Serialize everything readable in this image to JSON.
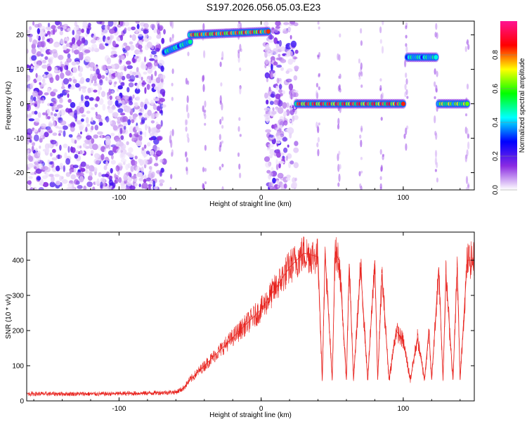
{
  "title": "S197.2026.056.05.03.E23",
  "chart_data": [
    {
      "type": "heatmap",
      "title": "S197.2026.056.05.03.E23",
      "xlabel": "Height of straight line (km)",
      "ylabel": "Frequency (Hz)",
      "xlim": [
        -165,
        150
      ],
      "ylim": [
        -25,
        24
      ],
      "xticks": [
        -100,
        0,
        100
      ],
      "yticks": [
        -20,
        -10,
        0,
        10,
        20
      ],
      "colorbar": {
        "label": "Normalized spectral amplitude",
        "range": [
          0,
          1
        ],
        "ticks": [
          "0.0",
          "0.2",
          "0.4",
          "0.6",
          "0.8"
        ],
        "colormap": [
          "#ffffff",
          "#8a2be2",
          "#0000ff",
          "#00ffff",
          "#00ff00",
          "#ffff00",
          "#ff0000",
          "#ff1493"
        ]
      },
      "tracks": [
        {
          "x_start": -68,
          "x_end": -50,
          "freq_start": 15,
          "freq_end": 18,
          "amplitude": 0.5
        },
        {
          "x_start": -50,
          "x_end": 5,
          "freq_start": 20,
          "freq_end": 21,
          "amplitude": 0.85
        },
        {
          "x_start": 25,
          "x_end": 100,
          "freq_start": 0,
          "freq_end": 0,
          "amplitude": 0.9
        },
        {
          "x_start": 103,
          "x_end": 123,
          "freq_start": 13.5,
          "freq_end": 13.5,
          "amplitude": 0.5
        },
        {
          "x_start": 125,
          "x_end": 145,
          "freq_start": 0,
          "freq_end": 0,
          "amplitude": 0.7
        }
      ],
      "noise_regions": [
        [
          -165,
          -68
        ],
        [
          3,
          25
        ]
      ]
    },
    {
      "type": "line",
      "xlabel": "Height of straight line (km)",
      "ylabel": "SNR (10 * v/v)",
      "xlim": [
        -165,
        150
      ],
      "ylim": [
        0,
        480
      ],
      "xticks": [
        -100,
        0,
        100
      ],
      "yticks": [
        0,
        100,
        200,
        300,
        400
      ],
      "series": [
        {
          "name": "SNR",
          "color": "#e8231e",
          "x": [
            -165,
            -140,
            -110,
            -80,
            -60,
            -55,
            -50,
            -40,
            -30,
            -20,
            -10,
            0,
            10,
            20,
            30,
            40,
            43,
            45,
            50,
            52,
            55,
            60,
            62,
            65,
            70,
            75,
            80,
            82,
            85,
            90,
            95,
            100,
            105,
            110,
            115,
            118,
            120,
            125,
            128,
            130,
            135,
            138,
            140,
            145,
            150
          ],
          "values": [
            20,
            20,
            20,
            22,
            25,
            35,
            60,
            100,
            140,
            180,
            220,
            260,
            320,
            380,
            420,
            410,
            60,
            420,
            60,
            420,
            400,
            60,
            390,
            60,
            380,
            60,
            400,
            60,
            360,
            60,
            200,
            170,
            60,
            180,
            60,
            200,
            60,
            380,
            60,
            360,
            60,
            380,
            60,
            400,
            400
          ]
        }
      ]
    }
  ]
}
